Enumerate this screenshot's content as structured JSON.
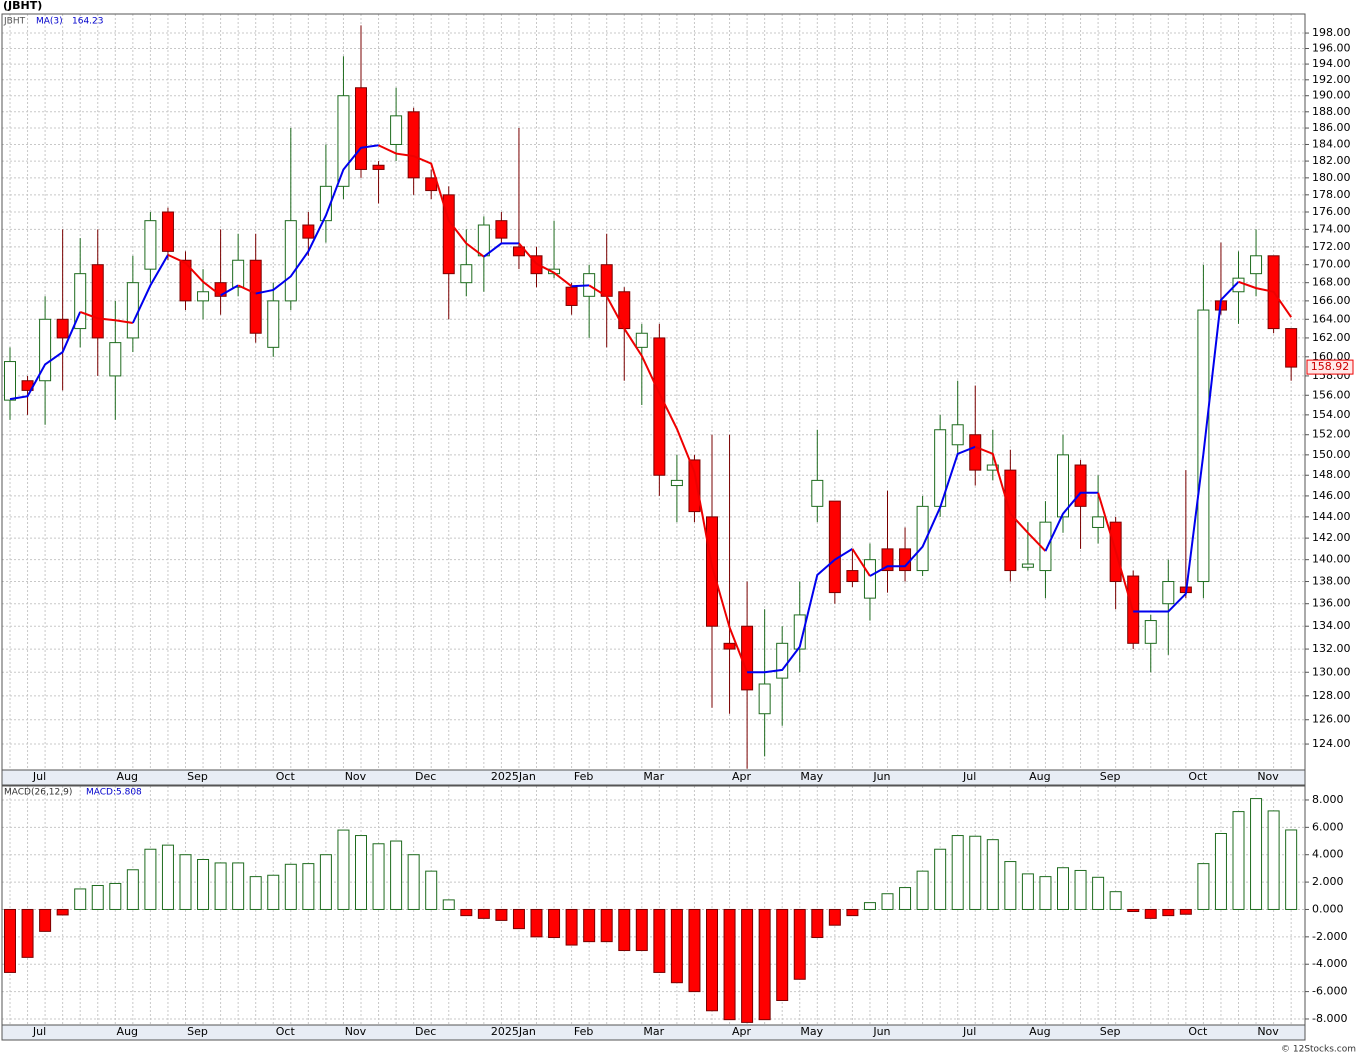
{
  "chart_data": [
    {
      "type": "candlestick",
      "title": "(JBHT)",
      "symbol": "JBHT",
      "categories": [
        null,
        "Jul",
        null,
        null,
        null,
        null,
        "Aug",
        null,
        null,
        null,
        "Sep",
        null,
        null,
        null,
        null,
        "Oct",
        null,
        null,
        null,
        "Nov",
        null,
        null,
        null,
        "Dec",
        null,
        null,
        null,
        null,
        "2025Jan",
        null,
        null,
        null,
        "Feb",
        null,
        null,
        null,
        "Mar",
        null,
        null,
        null,
        null,
        "Apr",
        null,
        null,
        null,
        "May",
        null,
        null,
        null,
        "Jun",
        null,
        null,
        null,
        null,
        "Jul",
        null,
        null,
        null,
        "Aug",
        null,
        null,
        null,
        "Sep",
        null,
        null,
        null,
        null,
        "Oct",
        null,
        null,
        null,
        "Nov",
        null,
        null
      ],
      "open": [
        155.5,
        157.5,
        157.5,
        164,
        163,
        170,
        158,
        162,
        169.5,
        176,
        170.5,
        166,
        168,
        167.5,
        170.5,
        161,
        166,
        174.5,
        175,
        179,
        191,
        181.5,
        184,
        188,
        180,
        178,
        168,
        171,
        175,
        172,
        171,
        169,
        167.5,
        166.5,
        170,
        167,
        161,
        162,
        147,
        149.5,
        144,
        132.5,
        134,
        126.5,
        129.5,
        132,
        145,
        145.5,
        139,
        136.5,
        141,
        141,
        139,
        145,
        151,
        152,
        148.5,
        148.5,
        139.3,
        139,
        144,
        149,
        143,
        143.5,
        138.5,
        132.5,
        136,
        137.5,
        138,
        166,
        167,
        169,
        171,
        163
      ],
      "high": [
        161,
        158,
        166.5,
        174,
        173,
        174,
        166,
        171,
        176,
        176.5,
        171.5,
        169.5,
        174,
        173.5,
        173.5,
        168,
        186,
        176,
        184,
        195,
        199,
        182,
        191,
        188.5,
        181,
        179,
        174,
        175.5,
        176,
        186,
        172,
        175,
        168,
        170,
        173.5,
        167.5,
        163.5,
        163.5,
        150,
        150,
        152,
        152,
        138,
        135.5,
        134,
        138,
        152.5,
        145.5,
        141,
        141.5,
        146.5,
        143,
        146,
        154,
        157.5,
        157,
        152.5,
        150.5,
        143.5,
        145.5,
        152,
        149.5,
        148,
        144,
        139,
        135,
        140,
        148.5,
        170,
        172.5,
        171.5,
        174,
        171,
        163
      ],
      "low": [
        153.5,
        154,
        153,
        156.5,
        161,
        158,
        153.5,
        160.5,
        168,
        170.5,
        165,
        164,
        164.5,
        166.5,
        161.5,
        160,
        165,
        171,
        172.5,
        177.5,
        180,
        177,
        182,
        178,
        177.5,
        164,
        166.5,
        167,
        172.5,
        169.5,
        167.5,
        168.5,
        164.5,
        162,
        161,
        157.5,
        155,
        146,
        143.5,
        143.5,
        127,
        126.5,
        122,
        123,
        125.5,
        130,
        143.5,
        136,
        137.5,
        134.5,
        137,
        138,
        138.5,
        144,
        150,
        147,
        147.5,
        138,
        139,
        136.5,
        142.5,
        141,
        141.5,
        135.5,
        132,
        130,
        131.5,
        136.5,
        136.5,
        164.5,
        163.5,
        166.5,
        162.5,
        157.5
      ],
      "close": [
        159.5,
        156.5,
        164,
        162,
        169,
        162,
        161.5,
        168,
        175,
        171.5,
        166,
        167,
        166.5,
        170.5,
        162.5,
        166,
        175,
        173,
        179,
        190,
        181,
        181,
        187.5,
        180,
        178.5,
        169,
        170,
        174.5,
        173,
        171,
        169,
        169.5,
        165.5,
        169,
        166.5,
        163,
        162.5,
        148,
        147.5,
        144.5,
        134,
        132,
        128.5,
        129,
        132.5,
        135,
        147.5,
        137,
        138,
        140,
        139,
        139,
        145,
        152.5,
        153,
        148.5,
        149,
        139,
        139.6,
        143.5,
        150,
        145,
        144,
        138,
        132.5,
        134.5,
        138,
        137,
        165,
        165,
        168.5,
        171,
        163,
        158.92
      ],
      "up_color": "#ffffff",
      "up_edge": "#1e6b1e",
      "down_color": "#ff0000",
      "down_edge": "#7a0000",
      "ma": {
        "name": "MA(3)",
        "up_color": "#0000ee",
        "down_color": "#ee0000",
        "values": [
          155.6,
          155.9,
          159.2,
          160.5,
          164.8,
          164.1,
          163.9,
          163.6,
          167.7,
          171.1,
          170.2,
          168.1,
          166.6,
          167.7,
          166.8,
          167.2,
          168.7,
          171.5,
          175.6,
          181,
          183.6,
          183.9,
          182.9,
          182.6,
          181.7,
          175,
          172.4,
          170.9,
          172.4,
          172.4,
          170.1,
          169.1,
          167.6,
          167.7,
          166.5,
          163,
          160.1,
          156.2,
          152.6,
          148.3,
          139.4,
          133.9,
          130,
          130,
          130.2,
          132.2,
          138.6,
          140,
          141,
          138.5,
          139.4,
          139.4,
          141.2,
          144.9,
          150.1,
          150.8,
          150.1,
          144.3,
          142.5,
          140.8,
          144.3,
          146.3,
          146.3,
          140.8,
          135.3,
          135.3,
          135.3,
          136.9,
          150.1,
          166.1,
          168.1,
          167.4,
          167,
          164.23
        ]
      },
      "ylim": [
        121.9,
        200.5
      ],
      "log_scale": true,
      "grid": true,
      "yticks": [
        {
          "value": 124,
          "label": "124.00"
        },
        {
          "value": 126,
          "label": "126.00"
        },
        {
          "value": 128,
          "label": "128.00"
        },
        {
          "value": 130,
          "label": "130.00"
        },
        {
          "value": 132,
          "label": "132.00"
        },
        {
          "value": 134,
          "label": "134.00"
        },
        {
          "value": 136,
          "label": "136.00"
        },
        {
          "value": 138,
          "label": "138.00"
        },
        {
          "value": 140,
          "label": "140.00"
        },
        {
          "value": 142,
          "label": "142.00"
        },
        {
          "value": 144,
          "label": "144.00"
        },
        {
          "value": 146,
          "label": "146.00"
        },
        {
          "value": 148,
          "label": "148.00"
        },
        {
          "value": 150,
          "label": "150.00"
        },
        {
          "value": 152,
          "label": "152.00"
        },
        {
          "value": 154,
          "label": "154.00"
        },
        {
          "value": 156,
          "label": "156.00"
        },
        {
          "value": 158,
          "label": "158.00"
        },
        {
          "value": 160,
          "label": "160.00"
        },
        {
          "value": 162,
          "label": "162.00"
        },
        {
          "value": 164,
          "label": "164.00"
        },
        {
          "value": 166,
          "label": "166.00"
        },
        {
          "value": 168,
          "label": "168.00"
        },
        {
          "value": 170,
          "label": "170.00"
        },
        {
          "value": 172,
          "label": "172.00"
        },
        {
          "value": 174,
          "label": "174.00"
        },
        {
          "value": 176,
          "label": "176.00"
        },
        {
          "value": 178,
          "label": "178.00"
        },
        {
          "value": 180,
          "label": "180.00"
        },
        {
          "value": 182,
          "label": "182.00"
        },
        {
          "value": 184,
          "label": "184.00"
        },
        {
          "value": 186,
          "label": "186.00"
        },
        {
          "value": 188,
          "label": "188.00"
        },
        {
          "value": 190,
          "label": "190.00"
        },
        {
          "value": 192,
          "label": "192.00"
        },
        {
          "value": 194,
          "label": "194.00"
        },
        {
          "value": 196,
          "label": "196.00"
        },
        {
          "value": 198,
          "label": "198.00"
        }
      ]
    },
    {
      "type": "bar",
      "title": "MACD(26,12,9)",
      "legend_label": "MACD:5.808",
      "categories": [
        null,
        "Jul",
        null,
        null,
        null,
        null,
        "Aug",
        null,
        null,
        null,
        "Sep",
        null,
        null,
        null,
        null,
        "Oct",
        null,
        null,
        null,
        "Nov",
        null,
        null,
        null,
        "Dec",
        null,
        null,
        null,
        null,
        "2025Jan",
        null,
        null,
        null,
        "Feb",
        null,
        null,
        null,
        "Mar",
        null,
        null,
        null,
        null,
        "Apr",
        null,
        null,
        null,
        "May",
        null,
        null,
        null,
        "Jun",
        null,
        null,
        null,
        null,
        "Jul",
        null,
        null,
        null,
        "Aug",
        null,
        null,
        null,
        "Sep",
        null,
        null,
        null,
        null,
        "Oct",
        null,
        null,
        null,
        "Nov",
        null,
        null
      ],
      "values": [
        -4.6,
        -3.5,
        -1.6,
        -0.4,
        1.5,
        1.75,
        1.9,
        2.9,
        4.4,
        4.7,
        4,
        3.65,
        3.4,
        3.4,
        2.4,
        2.5,
        3.3,
        3.35,
        4,
        5.8,
        5.4,
        4.8,
        5,
        4,
        2.8,
        0.7,
        -0.45,
        -0.65,
        -0.8,
        -1.4,
        -2,
        -2.05,
        -2.6,
        -2.35,
        -2.35,
        -3,
        -3,
        -4.6,
        -5.35,
        -6,
        -7.4,
        -8.05,
        -8.25,
        -8.05,
        -6.65,
        -5.1,
        -2.05,
        -1.15,
        -0.45,
        0.5,
        1.15,
        1.6,
        2.8,
        4.4,
        5.4,
        5.35,
        5.1,
        3.5,
        2.6,
        2.4,
        3.05,
        2.85,
        2.35,
        1.3,
        -0.15,
        -0.65,
        -0.45,
        -0.35,
        3.35,
        5.55,
        7.15,
        8.1,
        7.2,
        5.808
      ],
      "pos_color": "#ffffff",
      "pos_edge": "#1e6b1e",
      "neg_color": "#ff0000",
      "neg_edge": "#7a0000",
      "ylim": [
        -8.44,
        9.02
      ],
      "grid": true,
      "yticks": [
        {
          "value": -8,
          "label": "-8.000"
        },
        {
          "value": -6,
          "label": "-6.000"
        },
        {
          "value": -4,
          "label": "-4.000"
        },
        {
          "value": -2,
          "label": "-2.000"
        },
        {
          "value": 0,
          "label": "0.000"
        },
        {
          "value": 2,
          "label": "2.000"
        },
        {
          "value": 4,
          "label": "4.000"
        },
        {
          "value": 6,
          "label": "6.000"
        },
        {
          "value": 8,
          "label": "8.000"
        }
      ]
    }
  ],
  "footer": "© 12Stocks.com"
}
